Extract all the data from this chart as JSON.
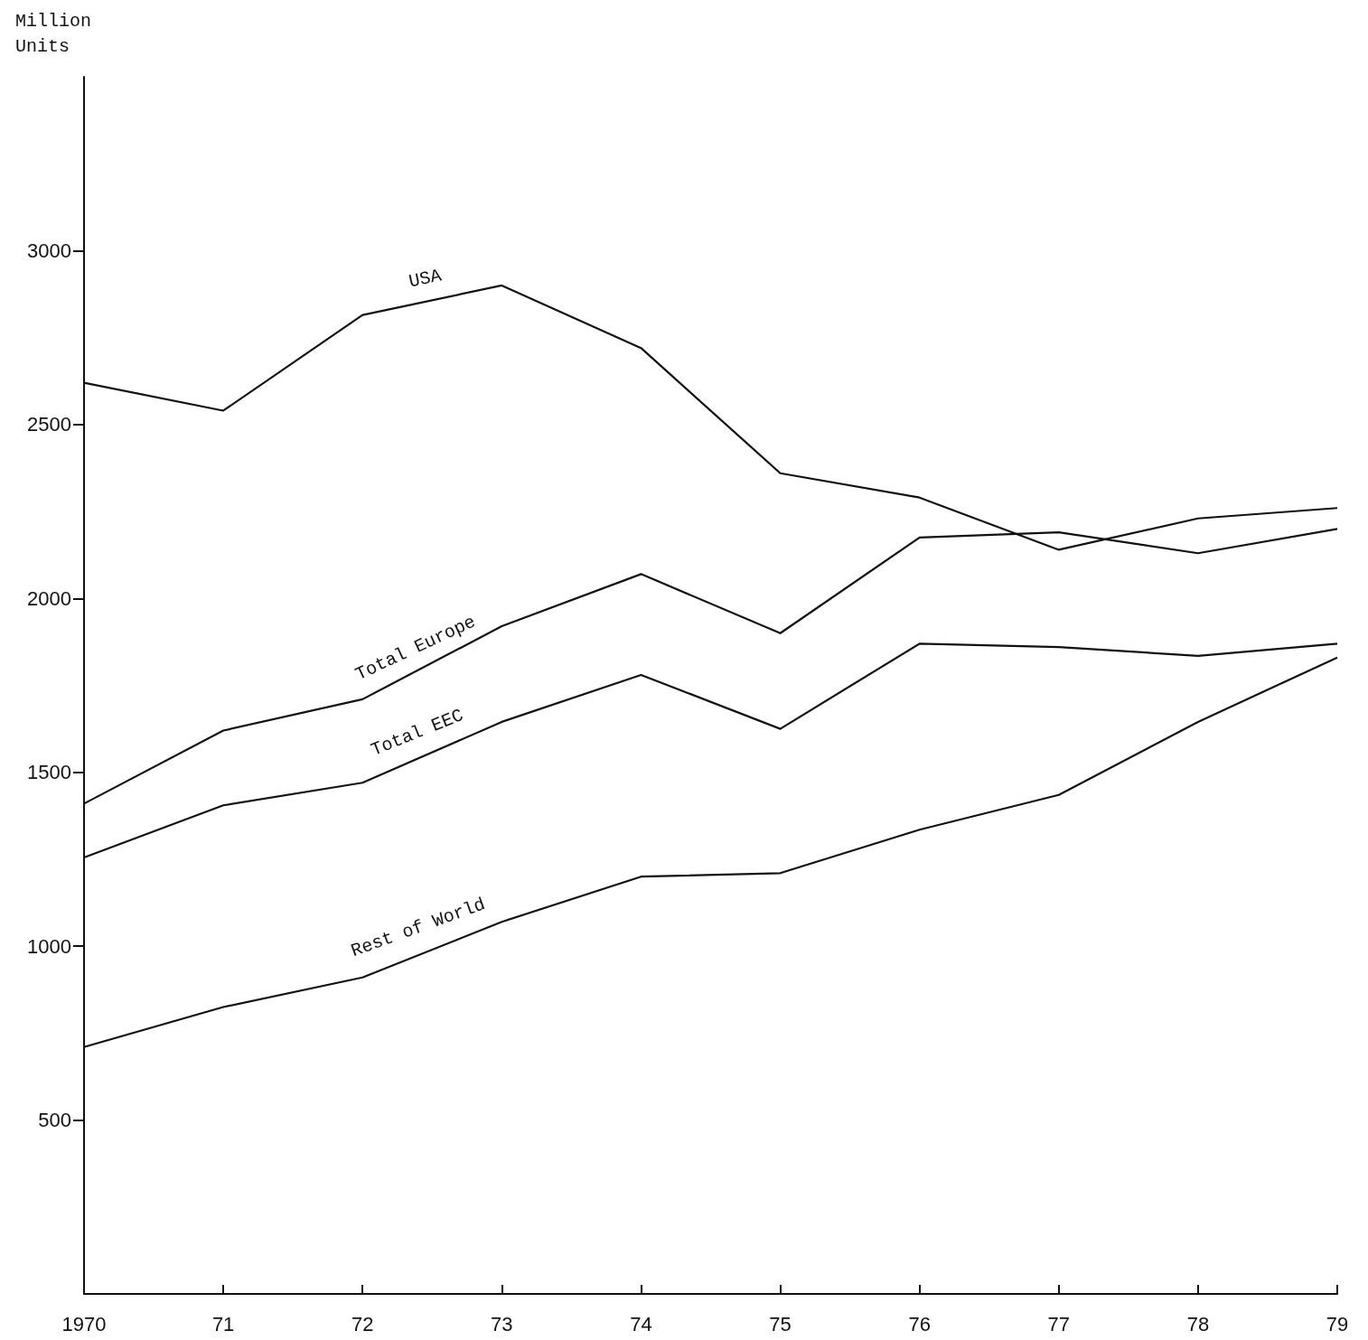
{
  "chart_data": {
    "type": "line",
    "ylabel": "Million\nUnits",
    "categories": [
      "1970",
      "71",
      "72",
      "73",
      "74",
      "75",
      "76",
      "77",
      "78",
      "79"
    ],
    "series": [
      {
        "name": "USA",
        "color": "#111111",
        "values": [
          2620,
          2540,
          2815,
          2900,
          2720,
          2360,
          2290,
          2140,
          2230,
          2260
        ]
      },
      {
        "name": "Total Europe",
        "color": "#111111",
        "values": [
          1410,
          1620,
          1710,
          1920,
          2070,
          1900,
          2175,
          2190,
          2130,
          2200
        ]
      },
      {
        "name": "Total EEC",
        "color": "#111111",
        "values": [
          1255,
          1405,
          1470,
          1645,
          1780,
          1625,
          1870,
          1860,
          1835,
          1870
        ]
      },
      {
        "name": "Rest of World",
        "color": "#111111",
        "values": [
          710,
          825,
          910,
          1070,
          1200,
          1210,
          1335,
          1435,
          1645,
          1830
        ]
      }
    ],
    "ylim": [
      0,
      3500
    ],
    "yticks": [
      500,
      1000,
      1500,
      2000,
      2500,
      3000
    ],
    "grid": false,
    "legend": false,
    "marker": "none",
    "line_style": "solid"
  }
}
